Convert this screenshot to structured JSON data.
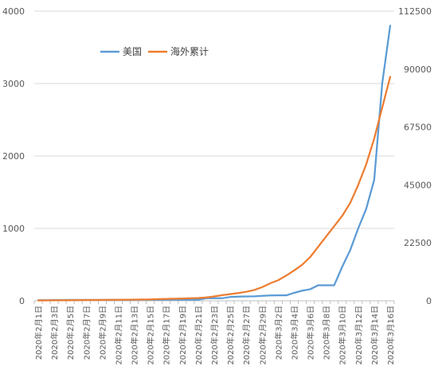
{
  "chart_data": {
    "type": "line",
    "title": "",
    "xlabel": "",
    "ylabel": "",
    "x": [
      "2020年2月1日",
      "2020年2月2日",
      "2020年2月3日",
      "2020年2月4日",
      "2020年2月5日",
      "2020年2月6日",
      "2020年2月7日",
      "2020年2月8日",
      "2020年2月9日",
      "2020年2月10日",
      "2020年2月11日",
      "2020年2月12日",
      "2020年2月13日",
      "2020年2月14日",
      "2020年2月15日",
      "2020年2月16日",
      "2020年2月17日",
      "2020年2月18日",
      "2020年2月19日",
      "2020年2月20日",
      "2020年2月21日",
      "2020年2月22日",
      "2020年2月23日",
      "2020年2月24日",
      "2020年2月25日",
      "2020年2月26日",
      "2020年2月27日",
      "2020年2月28日",
      "2020年2月29日",
      "2020年3月1日",
      "2020年3月2日",
      "2020年3月3日",
      "2020年3月4日",
      "2020年3月5日",
      "2020年3月6日",
      "2020年3月7日",
      "2020年3月8日",
      "2020年3月9日",
      "2020年3月10日",
      "2020年3月11日",
      "2020年3月12日",
      "2020年3月13日",
      "2020年3月14日",
      "2020年3月15日",
      "2020年3月16日"
    ],
    "x_tick_labels": [
      "2020年2月1日",
      "2020年2月3日",
      "2020年2月5日",
      "2020年2月7日",
      "2020年2月9日",
      "2020年2月11日",
      "2020年2月13日",
      "2020年2月15日",
      "2020年2月17日",
      "2020年2月19日",
      "2020年2月21日",
      "2020年2月23日",
      "2020年2月25日",
      "2020年2月27日",
      "2020年2月29日",
      "2020年3月2日",
      "2020年3月4日",
      "2020年3月6日",
      "2020年3月8日",
      "2020年3月10日",
      "2020年3月12日",
      "2020年3月14日",
      "2020年3月16日"
    ],
    "y_left": {
      "min": 0,
      "max": 4000,
      "ticks": [
        "0",
        "1000",
        "2000",
        "3000",
        "4000"
      ]
    },
    "y_right": {
      "min": 0,
      "max": 112500,
      "ticks": [
        "0",
        "22500",
        "45000",
        "67500",
        "90000",
        "112500"
      ]
    },
    "grid": true,
    "legend_position": "top-left",
    "series": [
      {
        "name": "美国",
        "axis": "left",
        "color": "#5b9bd5",
        "values": [
          8,
          8,
          11,
          11,
          12,
          12,
          12,
          12,
          12,
          12,
          13,
          13,
          14,
          15,
          15,
          15,
          15,
          15,
          15,
          15,
          15,
          35,
          35,
          35,
          53,
          57,
          60,
          62,
          68,
          74,
          75,
          75,
          110,
          140,
          160,
          215,
          215,
          215,
          470,
          700,
          1000,
          1270,
          1670,
          3000,
          3800
        ]
      },
      {
        "name": "海外累计",
        "axis": "right",
        "color": "#ed7d31",
        "values": [
          150,
          160,
          180,
          200,
          230,
          260,
          300,
          320,
          340,
          370,
          400,
          430,
          480,
          520,
          560,
          640,
          720,
          800,
          880,
          1000,
          1100,
          1300,
          1700,
          2200,
          2600,
          3000,
          3500,
          4200,
          5300,
          6800,
          8000,
          9800,
          11800,
          14000,
          17000,
          21000,
          25000,
          29000,
          33000,
          38000,
          45000,
          53000,
          63000,
          75000,
          87000
        ]
      }
    ]
  }
}
